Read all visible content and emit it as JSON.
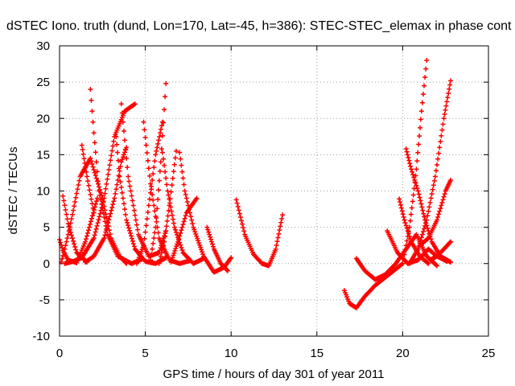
{
  "chart_data": {
    "type": "scatter",
    "title": "dSTEC Iono. truth (dund, Lon=170, Lat=-45, h=386): STEC-STEC_elemax in phase cont",
    "xlabel": "GPS time / hours of day 301 of year 2011",
    "ylabel": "dSTEC  / TECUs",
    "xlim": [
      0,
      25
    ],
    "ylim": [
      -10,
      30
    ],
    "x_ticks": [
      0,
      5,
      10,
      15,
      20,
      25
    ],
    "y_ticks": [
      -10,
      -5,
      0,
      5,
      10,
      15,
      20,
      25,
      30
    ],
    "grid": true,
    "marker": "+",
    "color": "#ff0000",
    "arcs": [
      {
        "x": [
          0.0,
          0.2,
          0.5,
          1.0,
          1.5,
          2.2
        ],
        "y": [
          3.3,
          1.8,
          0.5,
          0.1,
          3.0,
          9.0
        ]
      },
      {
        "x": [
          0.1,
          0.3,
          0.6,
          1.2,
          1.8,
          2.5,
          3.0,
          3.5,
          3.9
        ],
        "y": [
          0.2,
          2.0,
          5.0,
          12.0,
          14.5,
          9.0,
          3.5,
          1.0,
          0.0
        ]
      },
      {
        "x": [
          0.2,
          0.5,
          1.0,
          1.6
        ],
        "y": [
          9.3,
          5.5,
          1.5,
          0.2
        ]
      },
      {
        "x": [
          0.3,
          0.8,
          1.3,
          2.0,
          2.6,
          3.2,
          3.8,
          4.4
        ],
        "y": [
          0.0,
          0.3,
          0.8,
          3.5,
          9.0,
          17.5,
          21.0,
          22.0
        ]
      },
      {
        "x": [
          1.3,
          1.6,
          2.0
        ],
        "y": [
          16.3,
          12.0,
          7.0
        ]
      },
      {
        "x": [
          1.8,
          2.0,
          2.3,
          2.8,
          3.4,
          4.2,
          4.8
        ],
        "y": [
          24.0,
          18.0,
          10.0,
          4.0,
          1.0,
          0.0,
          0.6
        ]
      },
      {
        "x": [
          1.5,
          2.0,
          2.6,
          3.2,
          3.6,
          3.9
        ],
        "y": [
          0.2,
          1.0,
          3.5,
          9.0,
          14.0,
          16.0
        ]
      },
      {
        "x": [
          3.6,
          4.0,
          4.6,
          5.2,
          5.8,
          6.2
        ],
        "y": [
          22.0,
          12.0,
          4.0,
          1.0,
          1.5,
          4.5
        ]
      },
      {
        "x": [
          3.3,
          3.5,
          3.9,
          4.4,
          5.0,
          5.6,
          6.2
        ],
        "y": [
          17.5,
          12.0,
          6.0,
          2.0,
          0.3,
          0.0,
          0.8
        ]
      },
      {
        "x": [
          4.5,
          4.9,
          5.2,
          5.6,
          6.0
        ],
        "y": [
          0.0,
          2.5,
          8.0,
          15.0,
          19.5
        ]
      },
      {
        "x": [
          4.9,
          5.3,
          5.8,
          6.4,
          7.0,
          7.6
        ],
        "y": [
          19.5,
          11.0,
          3.5,
          0.5,
          0.0,
          0.4
        ]
      },
      {
        "x": [
          5.3,
          5.6,
          5.9,
          6.2
        ],
        "y": [
          0.5,
          5.0,
          14.0,
          24.8
        ]
      },
      {
        "x": [
          5.8,
          6.1,
          6.4,
          6.8
        ],
        "y": [
          0.0,
          3.0,
          8.0,
          15.5
        ]
      },
      {
        "x": [
          6.0,
          6.3,
          6.7,
          7.2,
          7.8,
          8.4
        ],
        "y": [
          15.3,
          10.0,
          5.0,
          1.5,
          0.0,
          0.7
        ]
      },
      {
        "x": [
          6.5,
          6.9,
          7.4,
          8.0
        ],
        "y": [
          0.2,
          3.0,
          7.0,
          9.0
        ]
      },
      {
        "x": [
          7.0,
          7.3,
          7.8,
          8.4,
          9.0,
          9.6,
          10.0
        ],
        "y": [
          15.3,
          10.0,
          5.0,
          1.0,
          -1.2,
          -0.5,
          0.8
        ]
      },
      {
        "x": [
          8.6,
          9.0,
          9.4,
          9.8
        ],
        "y": [
          5.0,
          2.0,
          0.0,
          -1.0
        ]
      },
      {
        "x": [
          10.3,
          10.8,
          11.3,
          11.8,
          12.2,
          12.6,
          13.0
        ],
        "y": [
          8.8,
          4.0,
          1.3,
          0.0,
          -0.3,
          2.0,
          6.7
        ]
      },
      {
        "x": [
          16.6,
          16.9,
          17.3,
          17.8,
          18.4,
          19.2,
          20.0
        ],
        "y": [
          -3.7,
          -5.5,
          -6.1,
          -4.5,
          -3.0,
          -1.5,
          0.0
        ]
      },
      {
        "x": [
          17.3,
          17.8,
          18.4,
          19.0,
          19.6,
          20.2,
          20.8,
          21.4,
          22.0
        ],
        "y": [
          0.7,
          -1.0,
          -2.2,
          -1.5,
          0.0,
          2.0,
          4.0,
          1.0,
          -0.3
        ]
      },
      {
        "x": [
          19.1,
          19.7,
          20.3,
          20.9,
          21.5,
          22.0,
          22.6
        ],
        "y": [
          4.5,
          1.5,
          0.0,
          0.5,
          2.0,
          1.0,
          0.3
        ]
      },
      {
        "x": [
          19.8,
          20.1,
          20.5,
          21.0,
          21.5
        ],
        "y": [
          8.9,
          6.0,
          3.0,
          1.0,
          0.0
        ]
      },
      {
        "x": [
          20.2,
          20.5,
          20.9,
          21.3,
          21.7,
          22.2,
          22.8
        ],
        "y": [
          15.8,
          13.0,
          10.0,
          6.0,
          3.0,
          1.0,
          0.2
        ]
      },
      {
        "x": [
          20.0,
          20.4,
          20.8,
          21.1,
          21.4
        ],
        "y": [
          0.0,
          5.0,
          13.0,
          21.0,
          28.0
        ]
      },
      {
        "x": [
          20.4,
          20.9,
          21.4,
          21.9,
          22.4,
          22.8
        ],
        "y": [
          0.0,
          2.0,
          6.0,
          12.0,
          20.0,
          25.2
        ]
      },
      {
        "x": [
          21.0,
          21.5,
          22.0,
          22.5,
          22.8
        ],
        "y": [
          2.5,
          3.5,
          6.0,
          10.0,
          11.5
        ]
      },
      {
        "x": [
          21.6,
          22.0,
          22.4,
          22.8
        ],
        "y": [
          0.5,
          1.0,
          2.0,
          3.0
        ]
      }
    ]
  }
}
